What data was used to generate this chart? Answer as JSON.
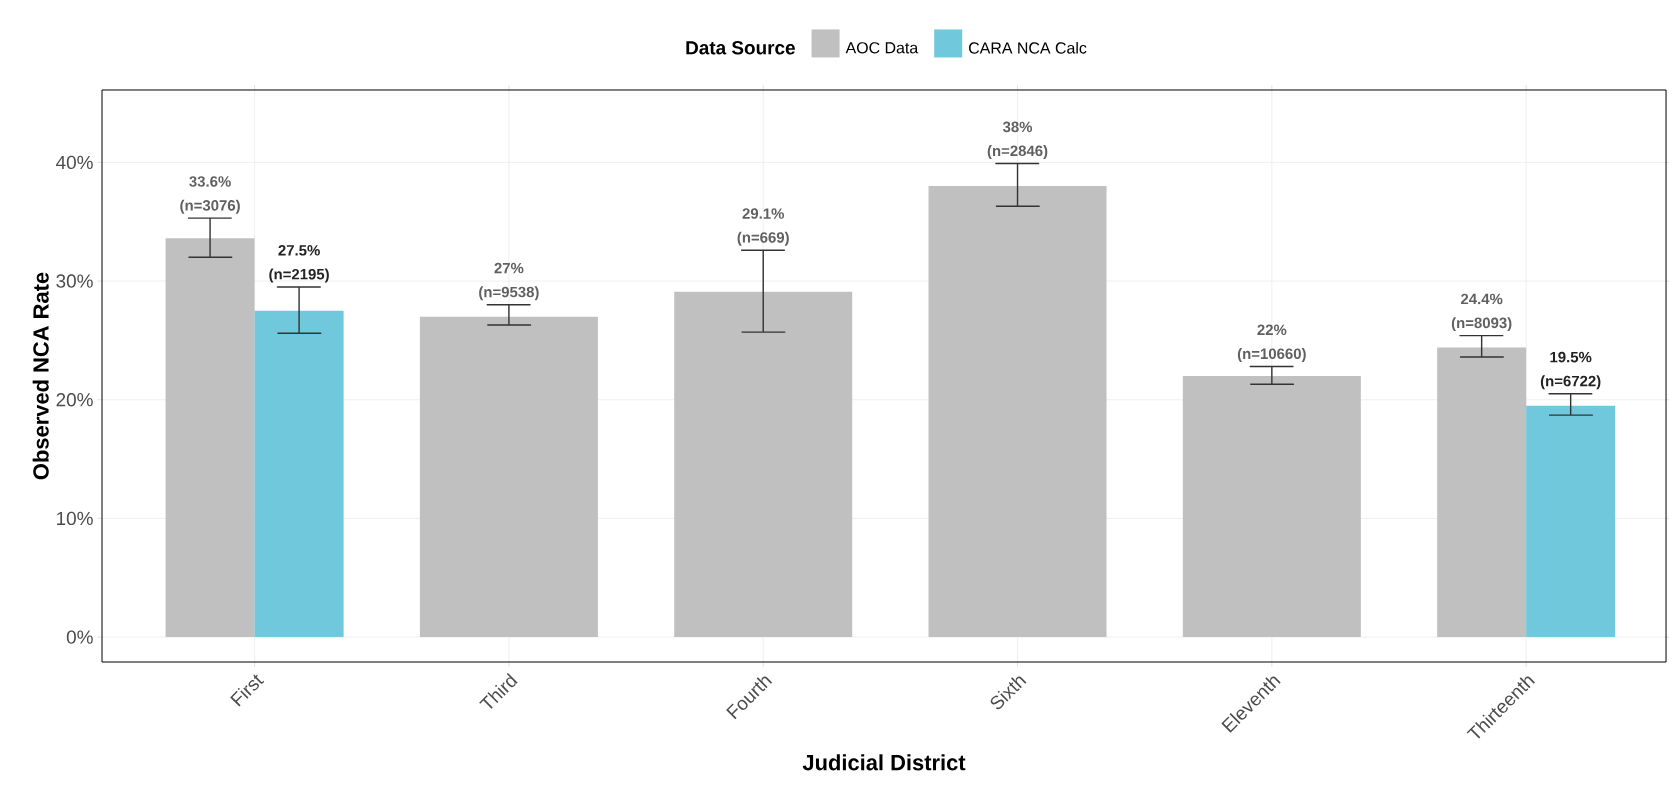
{
  "chart_data": {
    "type": "bar",
    "xlabel": "Judicial District",
    "ylabel": "Observed NCA Rate",
    "legend_title": "Data Source",
    "categories": [
      "First",
      "Third",
      "Fourth",
      "Sixth",
      "Eleventh",
      "Thirteenth"
    ],
    "series": [
      {
        "name": "AOC Data",
        "color": "#c0c0c0",
        "values": [
          33.6,
          27,
          29.1,
          38,
          22,
          24.4
        ],
        "errors": [
          [
            32.0,
            35.3
          ],
          [
            26.3,
            28.0
          ],
          [
            25.7,
            32.6
          ],
          [
            36.3,
            39.9
          ],
          [
            21.3,
            22.8
          ],
          [
            23.6,
            25.4
          ]
        ],
        "value_labels": [
          "33.6% (n=3076)",
          "27% (n=9538)",
          "29.1% (n=669)",
          "38% (n=2846)",
          "22% (n=10660)",
          "24.4% (n=8093)"
        ]
      },
      {
        "name": "CARA NCA Calc",
        "color": "#6fc8dc",
        "values": [
          27.5,
          null,
          null,
          null,
          null,
          19.5
        ],
        "errors": [
          [
            25.6,
            29.5
          ],
          null,
          null,
          null,
          null,
          [
            18.7,
            20.5
          ]
        ],
        "value_labels": [
          "27.5% (n=2195)",
          null,
          null,
          null,
          null,
          "19.5% (n=6722)"
        ]
      }
    ],
    "ylim": [
      -2.1,
      46.1
    ],
    "yticks": [
      {
        "value": 0,
        "label": "0%"
      },
      {
        "value": 10,
        "label": "10%"
      },
      {
        "value": 20,
        "label": "20%"
      },
      {
        "value": 30,
        "label": "30%"
      },
      {
        "value": 40,
        "label": "40%"
      }
    ],
    "grid": true,
    "legend": "top"
  }
}
